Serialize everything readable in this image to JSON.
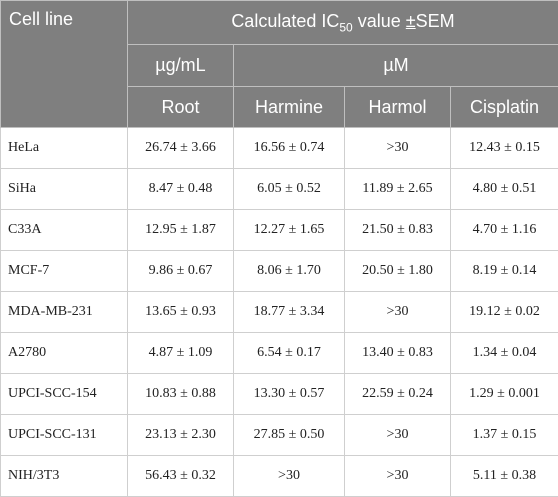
{
  "header": {
    "cell_line": "Cell line",
    "calc_prefix": "Calculated IC",
    "calc_sub": "50",
    "calc_suffix": " value ",
    "calc_pm": "±",
    "calc_sem": "SEM",
    "unit_ug": "µg/mL",
    "unit_um": "µM",
    "columns": [
      "Root",
      "Harmine",
      "Harmol",
      "Cisplatin"
    ]
  },
  "rows": [
    {
      "cell_line": "HeLa",
      "root": "26.74 ± 3.66",
      "harmine": "16.56 ± 0.74",
      "harmol": ">30",
      "cisplatin": "12.43 ± 0.15"
    },
    {
      "cell_line": "SiHa",
      "root": "8.47 ± 0.48",
      "harmine": "6.05 ± 0.52",
      "harmol": "11.89 ± 2.65",
      "cisplatin": "4.80 ± 0.51"
    },
    {
      "cell_line": "C33A",
      "root": "12.95 ± 1.87",
      "harmine": "12.27 ± 1.65",
      "harmol": "21.50 ± 0.83",
      "cisplatin": "4.70 ± 1.16"
    },
    {
      "cell_line": "MCF-7",
      "root": "9.86 ± 0.67",
      "harmine": "8.06 ± 1.70",
      "harmol": "20.50 ± 1.80",
      "cisplatin": "8.19 ± 0.14"
    },
    {
      "cell_line": "MDA-MB-231",
      "root": "13.65 ± 0.93",
      "harmine": "18.77 ± 3.34",
      "harmol": ">30",
      "cisplatin": "19.12 ± 0.02"
    },
    {
      "cell_line": "A2780",
      "root": "4.87 ± 1.09",
      "harmine": "6.54 ± 0.17",
      "harmol": "13.40 ± 0.83",
      "cisplatin": "1.34 ± 0.04"
    },
    {
      "cell_line": "UPCI-SCC-154",
      "root": "10.83 ± 0.88",
      "harmine": "13.30 ± 0.57",
      "harmol": "22.59 ± 0.24",
      "cisplatin": "1.29 ± 0.001"
    },
    {
      "cell_line": "UPCI-SCC-131",
      "root": "23.13 ± 2.30",
      "harmine": "27.85 ± 0.50",
      "harmol": ">30",
      "cisplatin": "1.37 ± 0.15"
    },
    {
      "cell_line": "NIH/3T3",
      "root": "56.43 ± 0.32",
      "harmine": ">30",
      "harmol": ">30",
      "cisplatin": "5.11 ± 0.38"
    }
  ]
}
